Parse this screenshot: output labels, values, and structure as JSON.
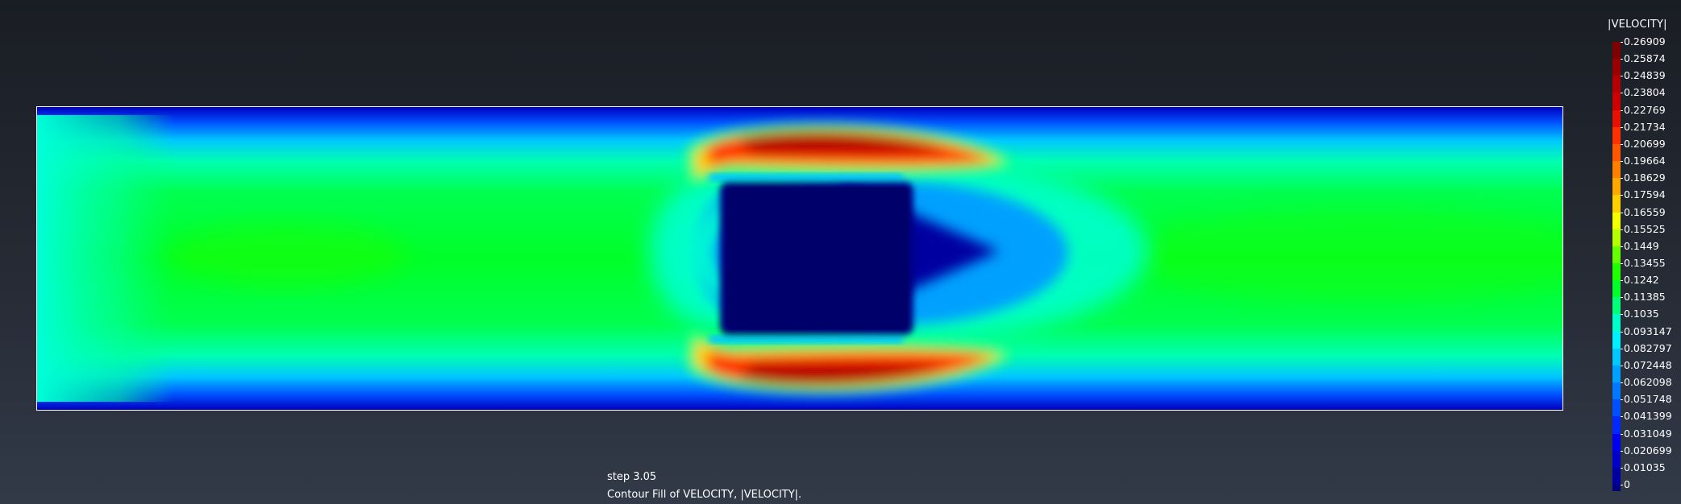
{
  "legend": {
    "title": "|VELOCITY|",
    "levels": [
      {
        "label": "0.26909",
        "color": "#7f0000"
      },
      {
        "label": "0.25874",
        "color": "#9a0000"
      },
      {
        "label": "0.24839",
        "color": "#b40000"
      },
      {
        "label": "0.23804",
        "color": "#cf0000"
      },
      {
        "label": "0.22769",
        "color": "#e81000"
      },
      {
        "label": "0.21734",
        "color": "#ff3000"
      },
      {
        "label": "0.20699",
        "color": "#ff5800"
      },
      {
        "label": "0.19664",
        "color": "#ff8000"
      },
      {
        "label": "0.18629",
        "color": "#ffa800"
      },
      {
        "label": "0.17594",
        "color": "#ffd000"
      },
      {
        "label": "0.16559",
        "color": "#f4ff00"
      },
      {
        "label": "0.15525",
        "color": "#b4ff00"
      },
      {
        "label": "0.1449",
        "color": "#64ff00"
      },
      {
        "label": "0.13455",
        "color": "#1eff00"
      },
      {
        "label": "0.1242",
        "color": "#00ff28"
      },
      {
        "label": "0.11385",
        "color": "#00ff78"
      },
      {
        "label": "0.1035",
        "color": "#00ffc8"
      },
      {
        "label": "0.093147",
        "color": "#00f0ff"
      },
      {
        "label": "0.082797",
        "color": "#00c8ff"
      },
      {
        "label": "0.072448",
        "color": "#00a0ff"
      },
      {
        "label": "0.062098",
        "color": "#0078ff"
      },
      {
        "label": "0.051748",
        "color": "#0050ff"
      },
      {
        "label": "0.041399",
        "color": "#0028ff"
      },
      {
        "label": "0.031049",
        "color": "#0000f0"
      },
      {
        "label": "0.020699",
        "color": "#0000c8"
      },
      {
        "label": "0.01035",
        "color": "#0000a0"
      },
      {
        "label": "0",
        "color": "#00007a"
      }
    ]
  },
  "caption": {
    "step": "step 3.05",
    "description": "Contour Fill of VELOCITY, |VELOCITY|."
  },
  "colors": {
    "frame_border": "#ffffff",
    "background_top": "#1a1d24",
    "background_bottom": "#323a48"
  }
}
